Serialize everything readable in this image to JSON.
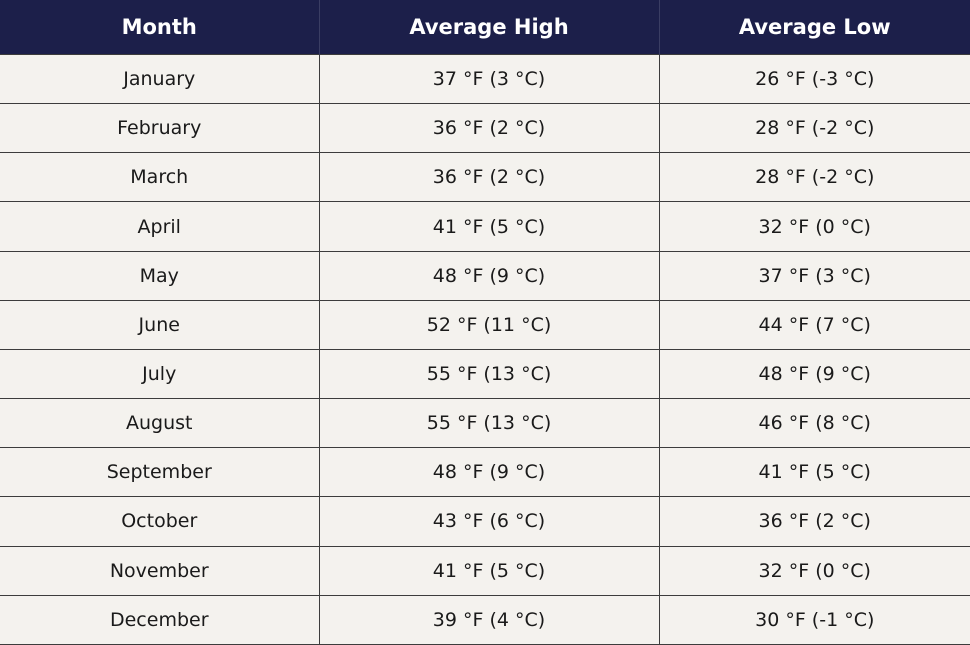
{
  "table": {
    "header": [
      "Month",
      "Average High",
      "Average Low"
    ],
    "rows": [
      [
        "January",
        "37 °F (3 °C)",
        "26 °F (-3 °C)"
      ],
      [
        "February",
        "36 °F (2 °C)",
        "28 °F (-2 °C)"
      ],
      [
        "March",
        "36 °F (2 °C)",
        "28 °F (-2 °C)"
      ],
      [
        "April",
        "41 °F (5 °C)",
        "32 °F (0 °C)"
      ],
      [
        "May",
        "48 °F (9 °C)",
        "37 °F (3 °C)"
      ],
      [
        "June",
        "52 °F (11 °C)",
        "44 °F (7 °C)"
      ],
      [
        "July",
        "55 °F (13 °C)",
        "48 °F (9 °C)"
      ],
      [
        "August",
        "55 °F (13 °C)",
        "46 °F (8 °C)"
      ],
      [
        "September",
        "48 °F (9 °C)",
        "41 °F (5 °C)"
      ],
      [
        "October",
        "43 °F (6 °C)",
        "36 °F (2 °C)"
      ],
      [
        "November",
        "41 °F (5 °C)",
        "32 °F (0 °C)"
      ],
      [
        "December",
        "39 °F (4 °C)",
        "30 °F (-1 °C)"
      ]
    ]
  }
}
